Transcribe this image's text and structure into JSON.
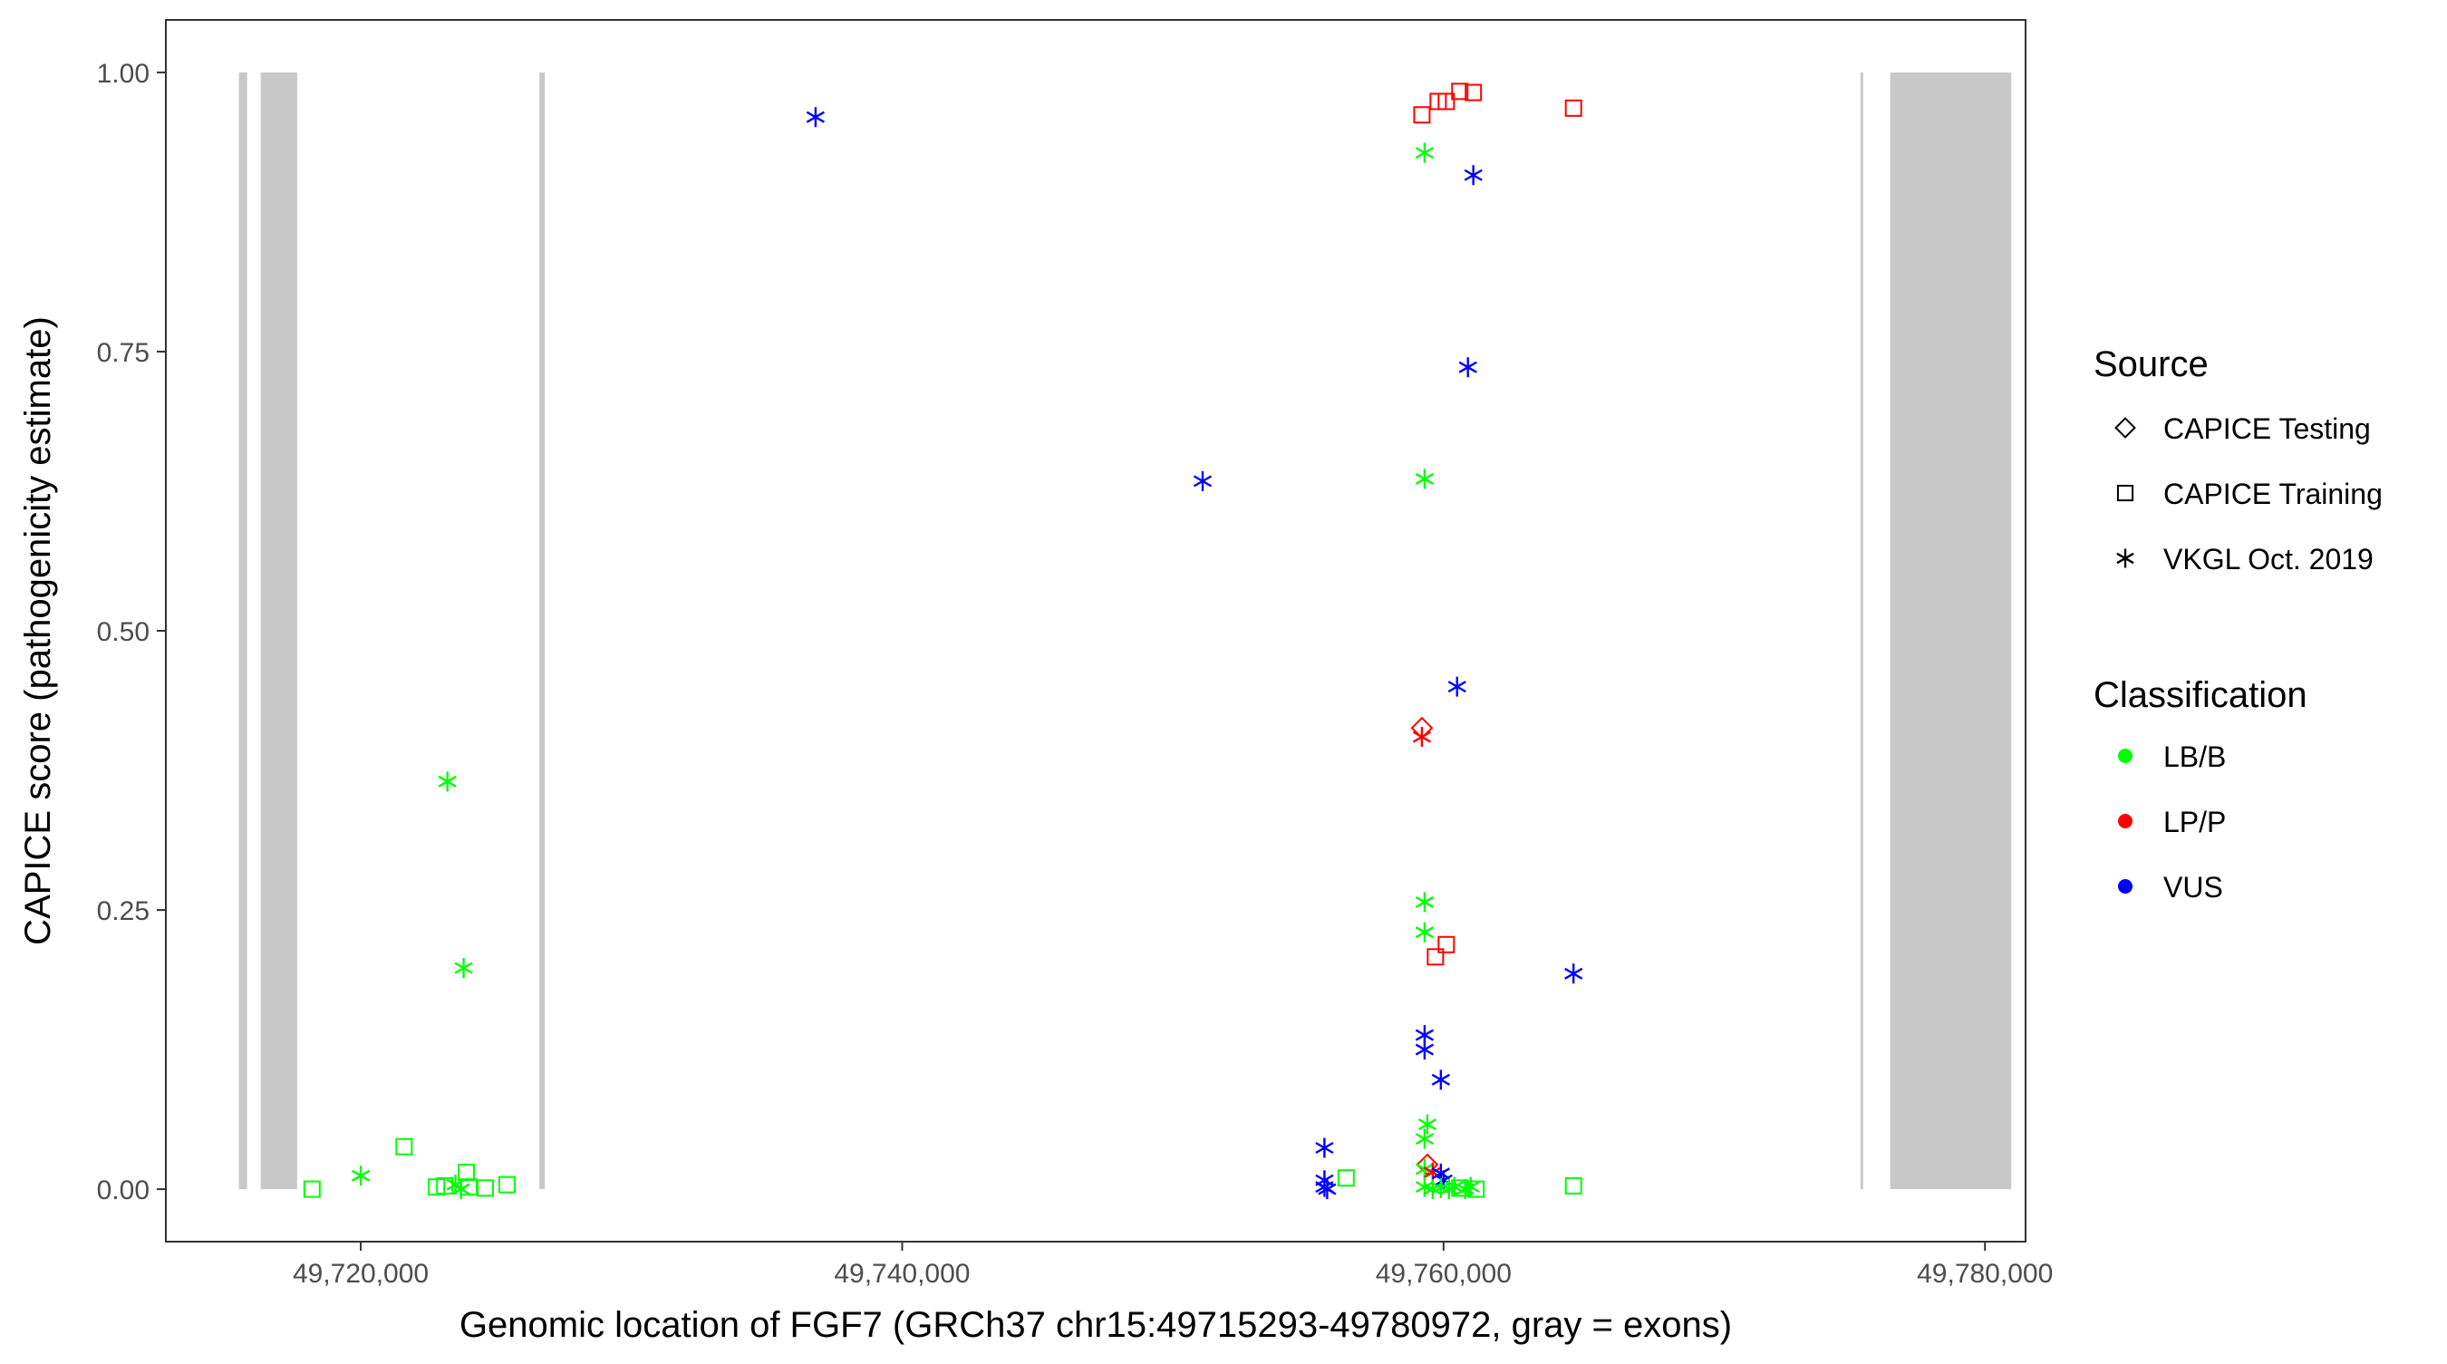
{
  "chart_data": {
    "type": "scatter",
    "title": "",
    "xlabel": "Genomic location of FGF7 (GRCh37 chr15:49715293-49780972, gray = exons)",
    "ylabel": "CAPICE score (pathogenicity estimate)",
    "xlim": [
      49712800,
      49781500
    ],
    "ylim": [
      -0.047,
      1.047
    ],
    "x_ticks": [
      {
        "value": 49720000,
        "label": "49,720,000"
      },
      {
        "value": 49740000,
        "label": "49,740,000"
      },
      {
        "value": 49760000,
        "label": "49,760,000"
      },
      {
        "value": 49780000,
        "label": "49,780,000"
      }
    ],
    "y_ticks": [
      {
        "value": 0,
        "label": "0.00"
      },
      {
        "value": 0.25,
        "label": "0.25"
      },
      {
        "value": 0.5,
        "label": "0.50"
      },
      {
        "value": 0.75,
        "label": "0.75"
      },
      {
        "value": 1,
        "label": "1.00"
      }
    ],
    "grid": false,
    "exons": [
      {
        "start": 49715500,
        "end": 49715800
      },
      {
        "start": 49716300,
        "end": 49717650
      },
      {
        "start": 49726600,
        "end": 49726800
      },
      {
        "start": 49775400,
        "end": 49775500
      },
      {
        "start": 49776500,
        "end": 49780972
      }
    ],
    "colors": {
      "LB/B": "#00ff00",
      "LP/P": "#ff0000",
      "VUS": "#0000ff",
      "exon": "#c8c8c8"
    },
    "legend_placement": "right",
    "legend_source": {
      "title": "Source",
      "entries": [
        {
          "label": "CAPICE Testing",
          "shape": "diamond"
        },
        {
          "label": "CAPICE Training",
          "shape": "square"
        },
        {
          "label": "VKGL Oct. 2019",
          "shape": "asterisk"
        }
      ]
    },
    "legend_classification": {
      "title": "Classification",
      "entries": [
        {
          "label": "LB/B",
          "color": "#00ff00"
        },
        {
          "label": "LP/P",
          "color": "#ff0000"
        },
        {
          "label": "VUS",
          "color": "#0000ff"
        }
      ]
    },
    "points": [
      {
        "x": 49718200,
        "y": 0.0,
        "source": "CAPICE Training",
        "class": "LB/B"
      },
      {
        "x": 49720000,
        "y": 0.012,
        "source": "VKGL Oct. 2019",
        "class": "LB/B"
      },
      {
        "x": 49721600,
        "y": 0.038,
        "source": "CAPICE Training",
        "class": "LB/B"
      },
      {
        "x": 49722800,
        "y": 0.002,
        "source": "CAPICE Training",
        "class": "LB/B"
      },
      {
        "x": 49723100,
        "y": 0.003,
        "source": "CAPICE Training",
        "class": "LB/B"
      },
      {
        "x": 49723200,
        "y": 0.365,
        "source": "VKGL Oct. 2019",
        "class": "LB/B"
      },
      {
        "x": 49723500,
        "y": 0.004,
        "source": "VKGL Oct. 2019",
        "class": "LB/B"
      },
      {
        "x": 49723700,
        "y": 0.0,
        "source": "VKGL Oct. 2019",
        "class": "LB/B"
      },
      {
        "x": 49723800,
        "y": 0.198,
        "source": "VKGL Oct. 2019",
        "class": "LB/B"
      },
      {
        "x": 49723900,
        "y": 0.015,
        "source": "CAPICE Training",
        "class": "LB/B"
      },
      {
        "x": 49724000,
        "y": 0.002,
        "source": "CAPICE Training",
        "class": "LB/B"
      },
      {
        "x": 49724600,
        "y": 0.001,
        "source": "CAPICE Training",
        "class": "LB/B"
      },
      {
        "x": 49725400,
        "y": 0.004,
        "source": "CAPICE Training",
        "class": "LB/B"
      },
      {
        "x": 49736800,
        "y": 0.96,
        "source": "VKGL Oct. 2019",
        "class": "VUS"
      },
      {
        "x": 49751100,
        "y": 0.634,
        "source": "VKGL Oct. 2019",
        "class": "VUS"
      },
      {
        "x": 49755600,
        "y": 0.037,
        "source": "VKGL Oct. 2019",
        "class": "VUS"
      },
      {
        "x": 49755600,
        "y": 0.008,
        "source": "VKGL Oct. 2019",
        "class": "VUS"
      },
      {
        "x": 49755600,
        "y": 0.002,
        "source": "VKGL Oct. 2019",
        "class": "VUS"
      },
      {
        "x": 49755700,
        "y": 0.0,
        "source": "VKGL Oct. 2019",
        "class": "VUS"
      },
      {
        "x": 49756400,
        "y": 0.01,
        "source": "CAPICE Training",
        "class": "LB/B"
      },
      {
        "x": 49759200,
        "y": 0.962,
        "source": "CAPICE Training",
        "class": "LP/P"
      },
      {
        "x": 49759800,
        "y": 0.974,
        "source": "CAPICE Training",
        "class": "LP/P"
      },
      {
        "x": 49760100,
        "y": 0.974,
        "source": "CAPICE Training",
        "class": "LP/P"
      },
      {
        "x": 49760600,
        "y": 0.983,
        "source": "CAPICE Training",
        "class": "LP/P"
      },
      {
        "x": 49761100,
        "y": 0.982,
        "source": "CAPICE Training",
        "class": "LP/P"
      },
      {
        "x": 49764800,
        "y": 0.968,
        "source": "CAPICE Training",
        "class": "LP/P"
      },
      {
        "x": 49759300,
        "y": 0.928,
        "source": "VKGL Oct. 2019",
        "class": "LB/B"
      },
      {
        "x": 49761100,
        "y": 0.908,
        "source": "VKGL Oct. 2019",
        "class": "VUS"
      },
      {
        "x": 49760900,
        "y": 0.736,
        "source": "VKGL Oct. 2019",
        "class": "VUS"
      },
      {
        "x": 49759300,
        "y": 0.636,
        "source": "VKGL Oct. 2019",
        "class": "LB/B"
      },
      {
        "x": 49760500,
        "y": 0.45,
        "source": "VKGL Oct. 2019",
        "class": "VUS"
      },
      {
        "x": 49759200,
        "y": 0.413,
        "source": "CAPICE Testing",
        "class": "LP/P"
      },
      {
        "x": 49759200,
        "y": 0.405,
        "source": "VKGL Oct. 2019",
        "class": "LP/P"
      },
      {
        "x": 49759300,
        "y": 0.257,
        "source": "VKGL Oct. 2019",
        "class": "LB/B"
      },
      {
        "x": 49759300,
        "y": 0.23,
        "source": "VKGL Oct. 2019",
        "class": "LB/B"
      },
      {
        "x": 49760100,
        "y": 0.219,
        "source": "CAPICE Training",
        "class": "LP/P"
      },
      {
        "x": 49759700,
        "y": 0.208,
        "source": "CAPICE Training",
        "class": "LP/P"
      },
      {
        "x": 49764800,
        "y": 0.193,
        "source": "VKGL Oct. 2019",
        "class": "VUS"
      },
      {
        "x": 49759300,
        "y": 0.138,
        "source": "VKGL Oct. 2019",
        "class": "VUS"
      },
      {
        "x": 49759300,
        "y": 0.125,
        "source": "VKGL Oct. 2019",
        "class": "VUS"
      },
      {
        "x": 49759900,
        "y": 0.098,
        "source": "VKGL Oct. 2019",
        "class": "VUS"
      },
      {
        "x": 49759400,
        "y": 0.058,
        "source": "VKGL Oct. 2019",
        "class": "LB/B"
      },
      {
        "x": 49759300,
        "y": 0.045,
        "source": "VKGL Oct. 2019",
        "class": "LB/B"
      },
      {
        "x": 49759400,
        "y": 0.022,
        "source": "CAPICE Testing",
        "class": "LP/P"
      },
      {
        "x": 49759300,
        "y": 0.018,
        "source": "VKGL Oct. 2019",
        "class": "LB/B"
      },
      {
        "x": 49759600,
        "y": 0.015,
        "source": "VKGL Oct. 2019",
        "class": "LP/P"
      },
      {
        "x": 49759900,
        "y": 0.014,
        "source": "VKGL Oct. 2019",
        "class": "VUS"
      },
      {
        "x": 49760000,
        "y": 0.008,
        "source": "VKGL Oct. 2019",
        "class": "VUS"
      },
      {
        "x": 49759300,
        "y": 0.002,
        "source": "VKGL Oct. 2019",
        "class": "LB/B"
      },
      {
        "x": 49759600,
        "y": 0.0,
        "source": "VKGL Oct. 2019",
        "class": "LB/B"
      },
      {
        "x": 49759900,
        "y": 0.001,
        "source": "VKGL Oct. 2019",
        "class": "LB/B"
      },
      {
        "x": 49760200,
        "y": 0.0,
        "source": "VKGL Oct. 2019",
        "class": "LB/B"
      },
      {
        "x": 49760400,
        "y": 0.002,
        "source": "VKGL Oct. 2019",
        "class": "LB/B"
      },
      {
        "x": 49760600,
        "y": 0.001,
        "source": "CAPICE Training",
        "class": "LB/B"
      },
      {
        "x": 49760800,
        "y": 0.0,
        "source": "VKGL Oct. 2019",
        "class": "LB/B"
      },
      {
        "x": 49761000,
        "y": 0.002,
        "source": "VKGL Oct. 2019",
        "class": "LB/B"
      },
      {
        "x": 49761200,
        "y": 0.0,
        "source": "CAPICE Training",
        "class": "LB/B"
      },
      {
        "x": 49764800,
        "y": 0.003,
        "source": "CAPICE Training",
        "class": "LB/B"
      }
    ]
  }
}
